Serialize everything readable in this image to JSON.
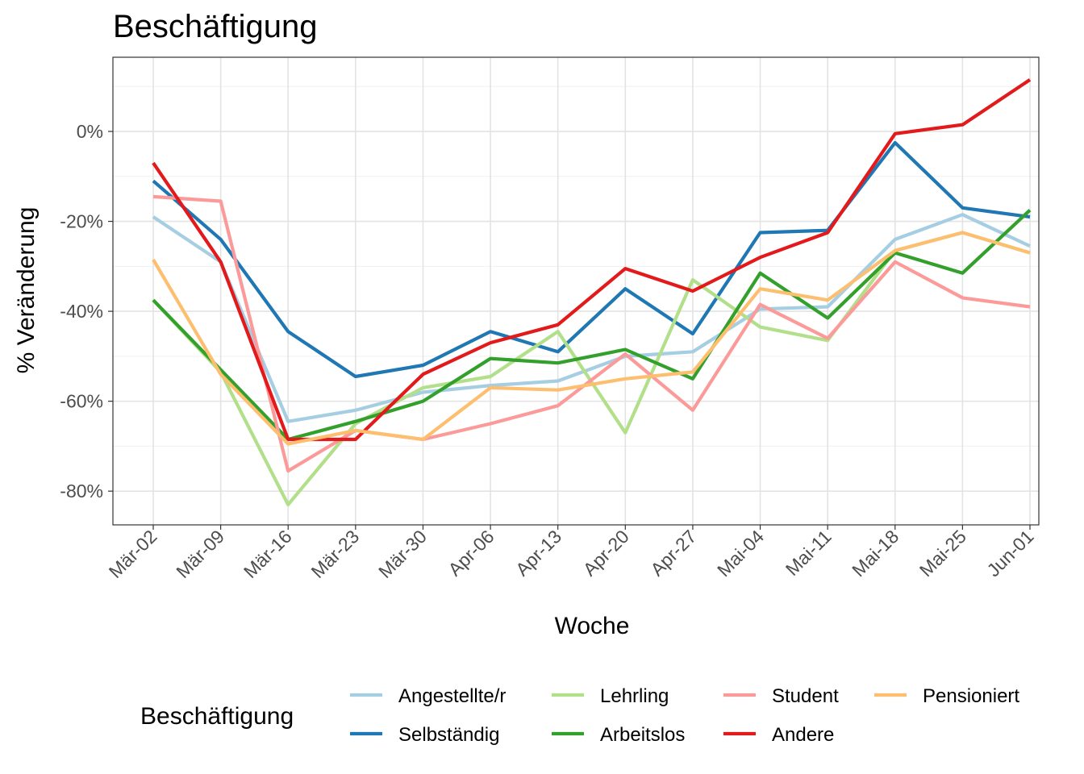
{
  "chart_data": {
    "type": "line",
    "title": "Beschäftigung",
    "xlabel": "Woche",
    "ylabel": "% Veränderung",
    "categories": [
      "Mär-02",
      "Mär-09",
      "Mär-16",
      "Mär-23",
      "Mär-30",
      "Apr-06",
      "Apr-13",
      "Apr-20",
      "Apr-27",
      "Mai-04",
      "Mai-11",
      "Mai-18",
      "Mai-25",
      "Jun-01"
    ],
    "y_ticks": [
      0,
      -20,
      -40,
      -60,
      -80
    ],
    "y_tick_labels": [
      "0%",
      "-20%",
      "-40%",
      "-60%",
      "-80%"
    ],
    "ylim": [
      -87.5,
      16.5
    ],
    "grid": true,
    "legend": {
      "title": "Beschäftigung",
      "placement": "bottom",
      "layout": "2 rows x 4 columns"
    },
    "series": [
      {
        "name": "Angestellte/r",
        "color": "#a6cee3",
        "values": [
          -19,
          -29,
          -64.5,
          -62,
          -58,
          -56.5,
          -55.5,
          -50,
          -49,
          -39.5,
          -39,
          -24,
          -18.5,
          -25.5
        ]
      },
      {
        "name": "Selbständig",
        "color": "#1f78b4",
        "values": [
          -11,
          -24,
          -44.5,
          -54.5,
          -52,
          -44.5,
          -49,
          -35,
          -45,
          -22.5,
          -22,
          -2.5,
          -17,
          -19
        ]
      },
      {
        "name": "Lehrling",
        "color": "#b2df8a",
        "values": [
          -37.5,
          -53.5,
          -83,
          -65,
          -57,
          -54.5,
          -44.5,
          -67,
          -33,
          -43.5,
          -46.5,
          -26.5,
          -22.5,
          -27
        ]
      },
      {
        "name": "Arbeitslos",
        "color": "#33a02c",
        "values": [
          -37.5,
          -53,
          -68.5,
          -64.5,
          -60,
          -50.5,
          -51.5,
          -48.5,
          -55,
          -31.5,
          -41.5,
          -27,
          -31.5,
          -17.5
        ]
      },
      {
        "name": "Student",
        "color": "#fb9a99",
        "values": [
          -14.5,
          -15.5,
          -75.5,
          -66.5,
          -68.5,
          -65,
          -61,
          -49.5,
          -62,
          -38.5,
          -46,
          -29,
          -37,
          -39
        ]
      },
      {
        "name": "Andere",
        "color": "#e31a1c",
        "values": [
          -7,
          -29,
          -68.5,
          -68.5,
          -54,
          -47,
          -43,
          -30.5,
          -35.5,
          -28,
          -22.5,
          -0.5,
          1.5,
          11.5
        ]
      },
      {
        "name": "Pensioniert",
        "color": "#fdbf6f",
        "values": [
          -28.5,
          -54,
          -69.5,
          -66.5,
          -68.5,
          -57,
          -57.5,
          -55,
          -53.5,
          -35,
          -37.5,
          -26.5,
          -22.5,
          -27
        ]
      }
    ]
  }
}
